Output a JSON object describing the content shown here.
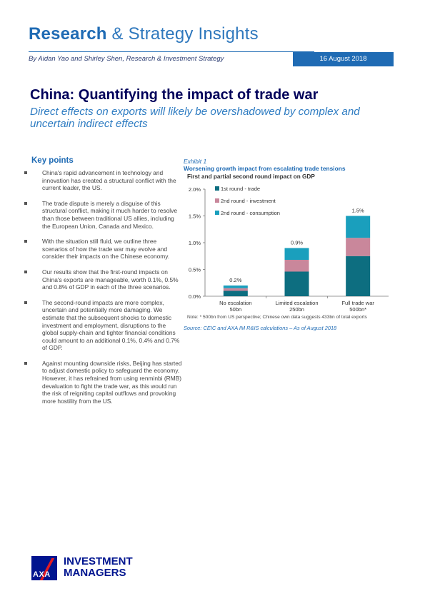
{
  "header": {
    "brand_bold": "Research",
    "brand_rest": "& Strategy Insights",
    "byline": "By Aidan Yao and Shirley Shen, Research & Investment Strategy",
    "date": "16 August 2018"
  },
  "article": {
    "title": "China: Quantifying the impact of trade war",
    "subtitle": "Direct effects on exports will likely be overshadowed by complex and uncertain indirect effects"
  },
  "key_points": {
    "heading": "Key points",
    "items": [
      "China's rapid advancement in technology and innovation has created a structural conflict with the current leader, the US.",
      "The trade dispute is merely a disguise of this structural conflict, making it much harder to resolve than those between traditional US allies, including the European Union, Canada and Mexico.",
      "With the situation still fluid, we outline three scenarios of how the trade war may evolve and consider their impacts on the Chinese economy.",
      "Our results show that the first-round impacts on China's exports are manageable, worth 0.1%, 0.5% and 0.8% of GDP in each of the three scenarios.",
      "The second-round impacts are more complex, uncertain and potentially more damaging. We estimate that the subsequent shocks to domestic investment and employment, disruptions to the global supply-chain and tighter financial conditions could amount to an additional 0.1%, 0.4% and 0.7% of GDP.",
      "Against mounting downside risks, Beijing has started to adjust domestic policy to safeguard the economy. However, it has refrained from using renminbi (RMB) devaluation to fight the trade war, as this would run the risk of reigniting capital outflows and provoking more hostility from the US."
    ]
  },
  "exhibit": {
    "label": "Exhibit 1",
    "title": "Worsening growth impact from escalating trade tensions",
    "note": "Note: * 500bn from US perspective; Chinese own data suggests 433bn of total exports",
    "source": "Source: CEIC and AXA IM R&IS calculations – As of August 2018"
  },
  "chart_data": {
    "type": "bar",
    "stacked": true,
    "title": "First and partial second round impact on GDP",
    "categories": [
      [
        "No escalation",
        "50bn"
      ],
      [
        "Limited escalation",
        "250bn"
      ],
      [
        "Full trade war",
        "500bn*"
      ]
    ],
    "series": [
      {
        "name": "1st round - trade",
        "values": [
          0.1,
          0.46,
          0.75
        ],
        "color": "#0d6e80"
      },
      {
        "name": "2nd round - investment",
        "values": [
          0.05,
          0.22,
          0.34
        ],
        "color": "#c9879b"
      },
      {
        "name": "2nd round - consumption",
        "values": [
          0.05,
          0.22,
          0.41
        ],
        "color": "#1a9fbd"
      }
    ],
    "data_labels": [
      "0.2%",
      "0.9%",
      "1.5%"
    ],
    "yticks": [
      "0.0%",
      "0.5%",
      "1.0%",
      "1.5%",
      "2.0%"
    ],
    "ylim": [
      0,
      2.0
    ],
    "legend_position": "top-left"
  },
  "footer": {
    "logo_letters": "AXA",
    "company_line1": "INVESTMENT",
    "company_line2": "MANAGERS"
  }
}
